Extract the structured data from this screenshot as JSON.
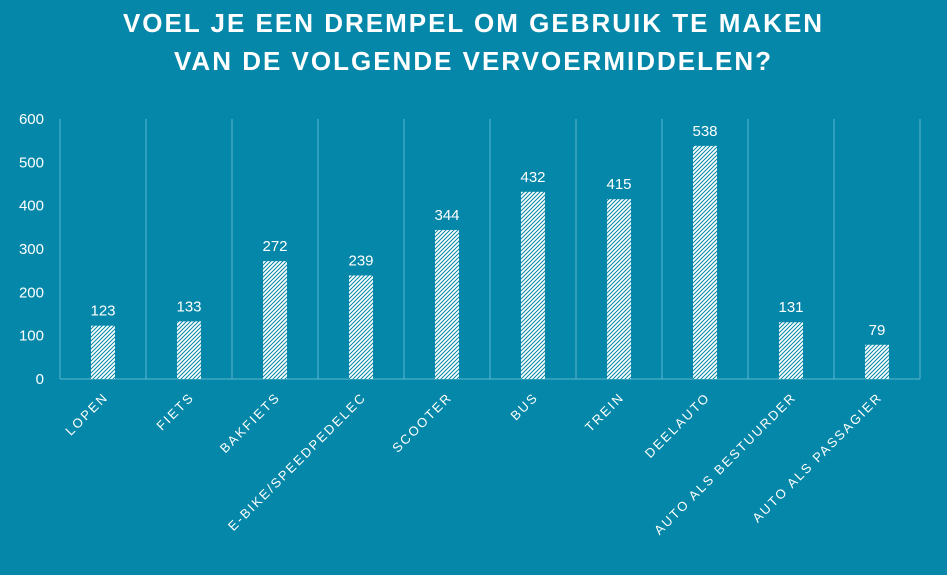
{
  "chart_data": {
    "type": "bar",
    "title_lines": [
      "VOEL JE EEN DREMPEL OM GEBRUIK TE MAKEN",
      "VAN DE VOLGENDE VERVOERMIDDELEN?"
    ],
    "categories": [
      "LOPEN",
      "FIETS",
      "BAKFIETS",
      "E-BIKE/SPEEDPEDELEC",
      "SCOOTER",
      "BUS",
      "TREIN",
      "DEELAUTO",
      "AUTO ALS BESTUURDER",
      "AUTO ALS PASSAGIER"
    ],
    "values": [
      123,
      133,
      272,
      239,
      344,
      432,
      415,
      538,
      131,
      79
    ],
    "ylim": [
      0,
      600
    ],
    "yticks": [
      0,
      100,
      200,
      300,
      400,
      500,
      600
    ],
    "xlabel": "",
    "ylabel": "",
    "grid": "vertical",
    "legend": "none",
    "colors": {
      "background": "#0487A9",
      "bar_fill": "#ffffff",
      "bar_hatch": "#0487A9",
      "grid": "#5DB7CE",
      "text": "#ffffff"
    }
  }
}
